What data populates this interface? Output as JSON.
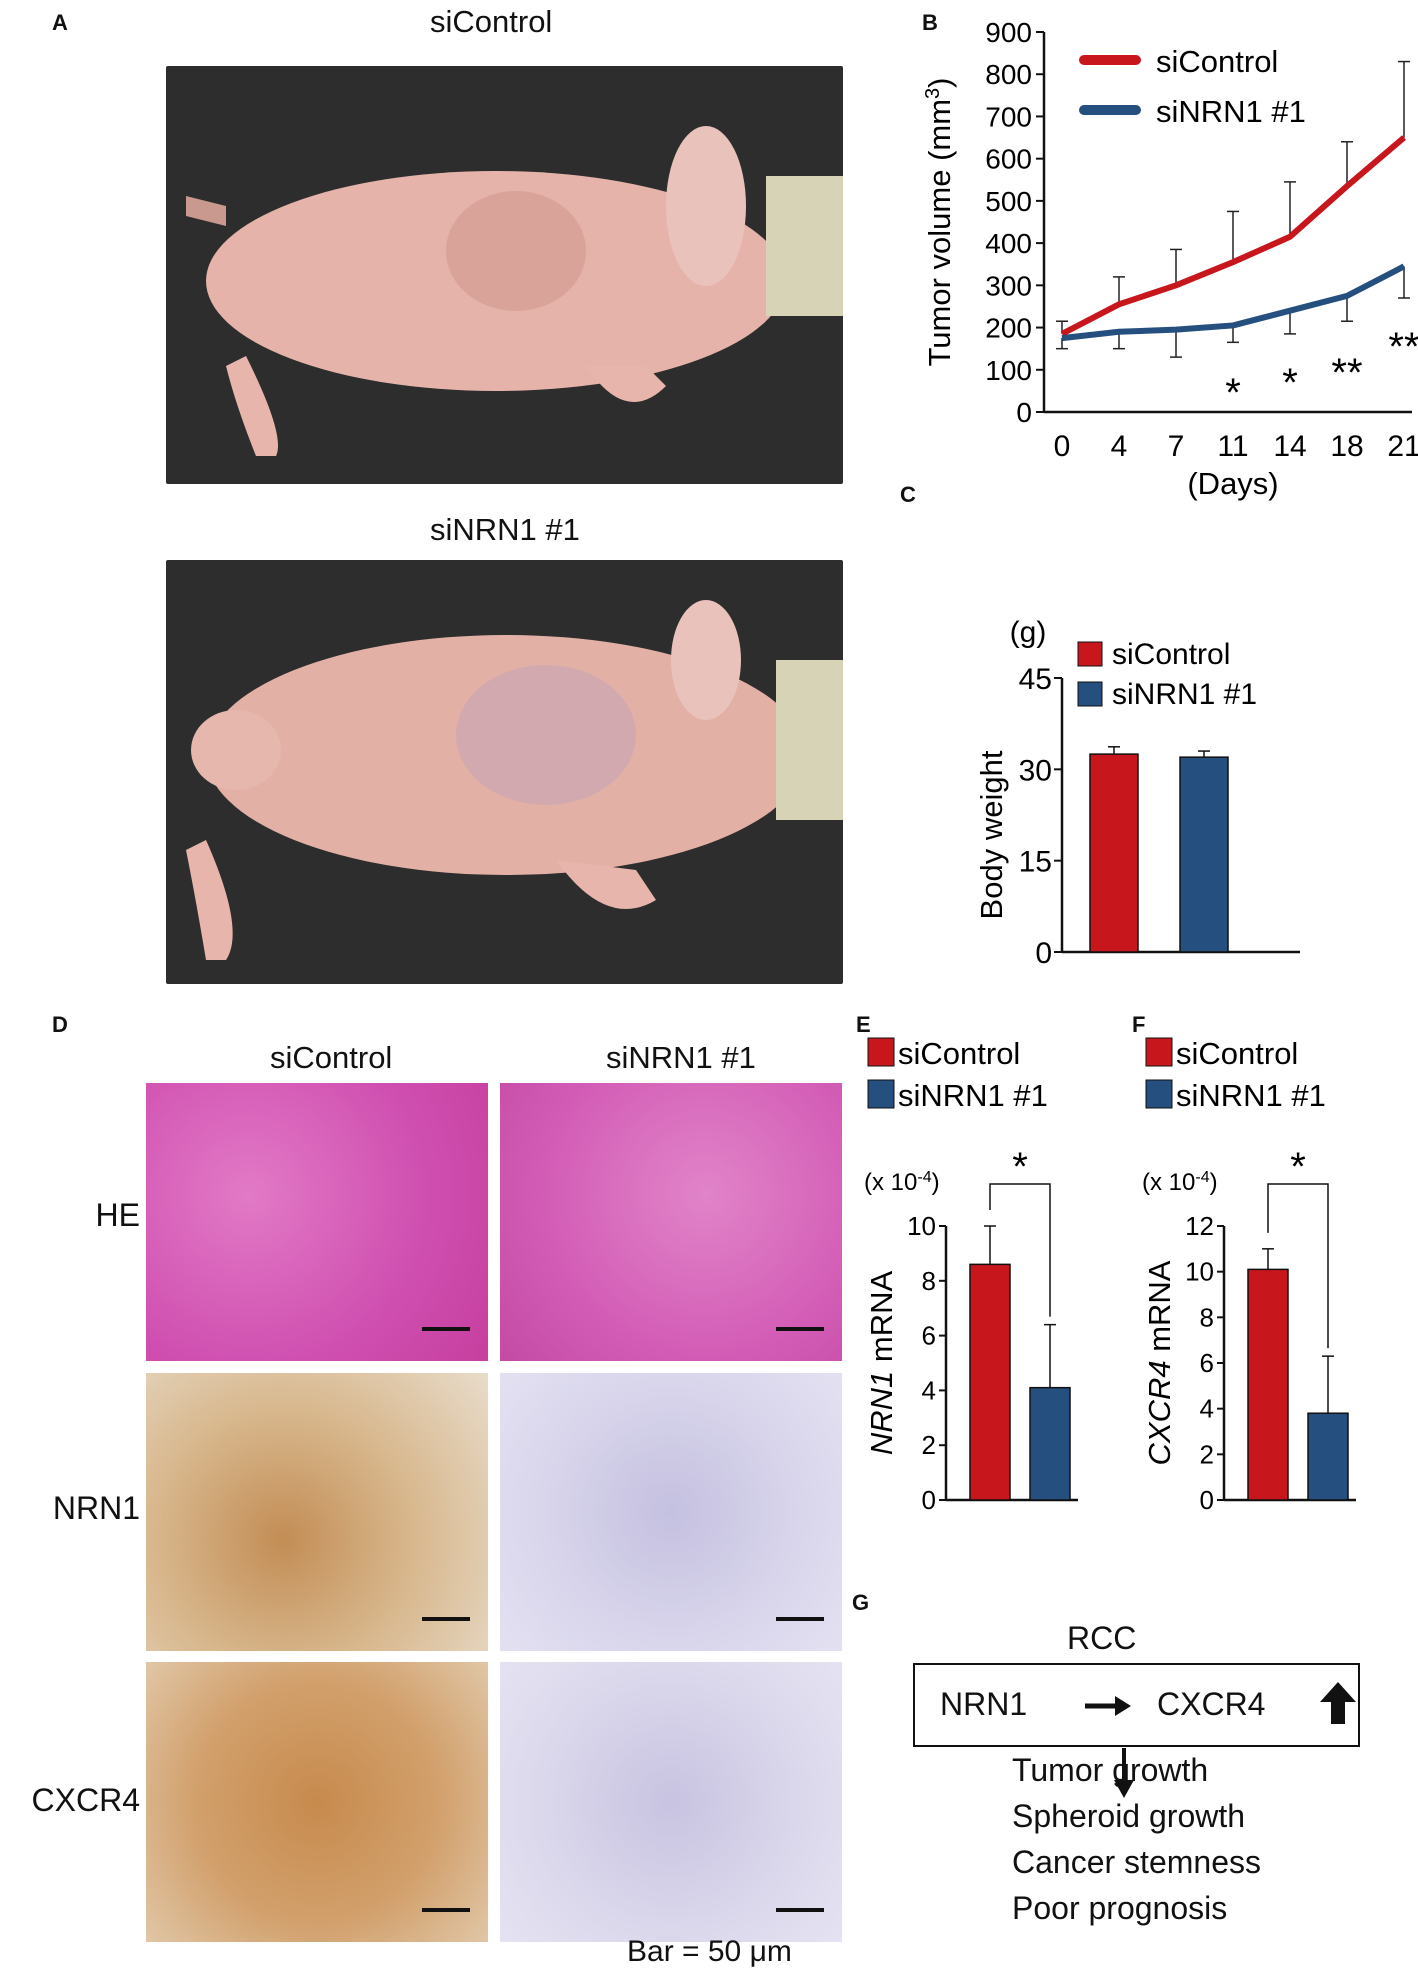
{
  "panel_labels": {
    "A": "A",
    "B": "B",
    "C": "C",
    "D": "D",
    "E": "E",
    "F": "F",
    "G": "G"
  },
  "panelA": {
    "top_title": "siControl",
    "bottom_title": "siNRN1 #1"
  },
  "panelD": {
    "col_titles": [
      "siControl",
      "siNRN1 #1"
    ],
    "row_labels": [
      "HE",
      "NRN1",
      "CXCR4"
    ],
    "bar_note": "Bar = 50 μm"
  },
  "colors": {
    "siControl": "#c8161d",
    "siNRN1": "#254f7e",
    "photo_bg": "#2a2a2a",
    "he": "#d660b8",
    "ihc_pos": "#c89a64",
    "ihc_neg": "#cfcce6"
  },
  "chart_data": [
    {
      "panel": "B",
      "type": "line",
      "x": [
        0,
        4,
        7,
        11,
        14,
        18,
        21
      ],
      "xlabel": "(Days)",
      "ylabel": "Tumor volume (mm3)",
      "ylim": [
        0,
        900
      ],
      "yticks": [
        0,
        100,
        200,
        300,
        400,
        500,
        600,
        700,
        800,
        900
      ],
      "series": [
        {
          "name": "siControl",
          "values": [
            185,
            255,
            300,
            355,
            415,
            535,
            650
          ],
          "err": [
            30,
            65,
            85,
            120,
            130,
            105,
            180
          ]
        },
        {
          "name": "siNRN1 #1",
          "values": [
            175,
            190,
            195,
            205,
            240,
            275,
            345
          ],
          "err": [
            25,
            40,
            65,
            40,
            55,
            60,
            75
          ]
        }
      ],
      "annotations": [
        {
          "x": 11,
          "text": "*"
        },
        {
          "x": 14,
          "text": "*"
        },
        {
          "x": 18,
          "text": "**"
        },
        {
          "x": 21,
          "text": "**"
        }
      ]
    },
    {
      "panel": "C",
      "type": "bar",
      "categories": [
        "siControl",
        "siNRN1 #1"
      ],
      "values": [
        32.5,
        32
      ],
      "err": [
        1.2,
        1.0
      ],
      "ylabel": "Body weight",
      "unit": "(g)",
      "ylim": [
        0,
        45
      ],
      "yticks": [
        0,
        15,
        30,
        45
      ]
    },
    {
      "panel": "E",
      "type": "bar",
      "categories": [
        "siControl",
        "siNRN1 #1"
      ],
      "values": [
        8.6,
        4.1
      ],
      "err": [
        1.4,
        2.3
      ],
      "ylabel_gene": "NRN1",
      "ylabel_rest": " mRNA",
      "scale": "(x 10-4)",
      "ylim": [
        0,
        10
      ],
      "yticks": [
        0,
        2,
        4,
        6,
        8,
        10
      ],
      "sig": "*"
    },
    {
      "panel": "F",
      "type": "bar",
      "categories": [
        "siControl",
        "siNRN1 #1"
      ],
      "values": [
        10.1,
        3.8
      ],
      "err": [
        0.9,
        2.5
      ],
      "ylabel_gene": "CXCR4",
      "ylabel_rest": " mRNA",
      "scale": "(x 10-4)",
      "ylim": [
        0,
        12
      ],
      "yticks": [
        0,
        2,
        4,
        6,
        8,
        10,
        12
      ],
      "sig": "*"
    }
  ],
  "panelG": {
    "title": "RCC",
    "box_left": "NRN1",
    "box_right": "CXCR4",
    "outcomes": [
      "Tumor growth",
      "Spheroid growth",
      "Cancer stemness",
      "Poor prognosis"
    ]
  }
}
